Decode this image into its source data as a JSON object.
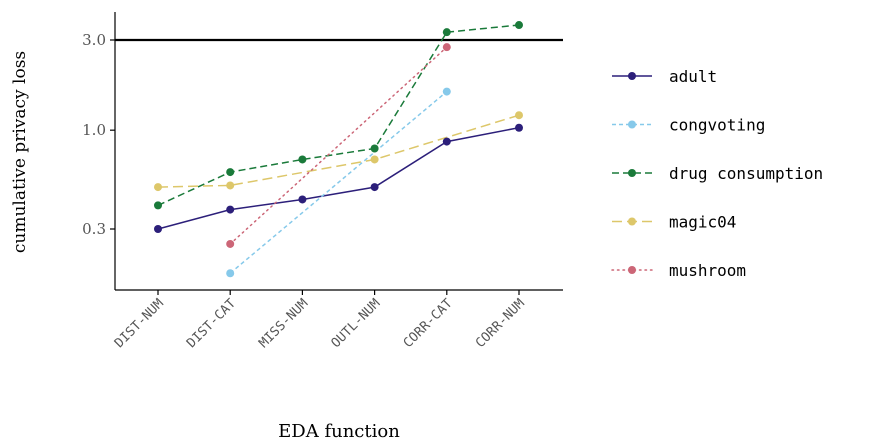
{
  "chart_data": {
    "type": "line",
    "xlabel": "EDA function",
    "ylabel": "cumulative privacy loss",
    "yscale": "log",
    "ylim": [
      0.15,
      4.3
    ],
    "yticks": [
      {
        "value": 0.3,
        "label": "0.3"
      },
      {
        "value": 1.0,
        "label": "1.0"
      },
      {
        "value": 3.0,
        "label": "3.0"
      }
    ],
    "categories": [
      "DIST-NUM",
      "DIST-CAT",
      "MISS-NUM",
      "OUTL-NUM",
      "CORR-CAT",
      "CORR-NUM"
    ],
    "reference_line": 3.0,
    "legend_position": "right",
    "grid": false,
    "series": [
      {
        "name": "adult",
        "color": "#2c1f7a",
        "dash": "solid",
        "values": [
          0.3,
          0.38,
          0.43,
          0.5,
          0.87,
          1.03
        ]
      },
      {
        "name": "congvoting",
        "color": "#86c9ea",
        "dash": "dashed-fine",
        "values": [
          null,
          0.175,
          null,
          null,
          1.6,
          null
        ]
      },
      {
        "name": "drug consumption",
        "color": "#1a7a3a",
        "dash": "dashed",
        "values": [
          0.4,
          0.6,
          0.7,
          0.8,
          3.3,
          3.6
        ]
      },
      {
        "name": "magic04",
        "color": "#ddc76a",
        "dash": "longdash",
        "values": [
          0.5,
          0.51,
          null,
          0.7,
          null,
          1.2
        ]
      },
      {
        "name": "mushroom",
        "color": "#cc6677",
        "dash": "dotted",
        "values": [
          null,
          0.25,
          null,
          null,
          2.75,
          null
        ]
      }
    ]
  }
}
